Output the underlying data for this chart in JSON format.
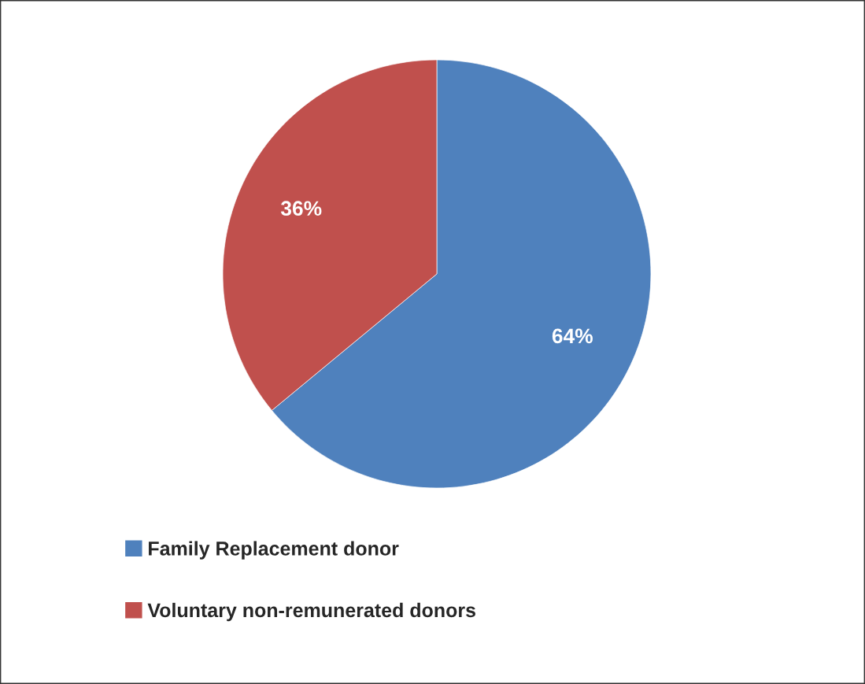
{
  "chart_data": {
    "type": "pie",
    "categories": [
      "Family Replacement donor",
      "Voluntary non-remunerated donors"
    ],
    "values": [
      64,
      36
    ],
    "colors": [
      "#4f81bd",
      "#c0504d"
    ],
    "value_labels": [
      "64%",
      "36%"
    ],
    "legend": "bottom left"
  }
}
